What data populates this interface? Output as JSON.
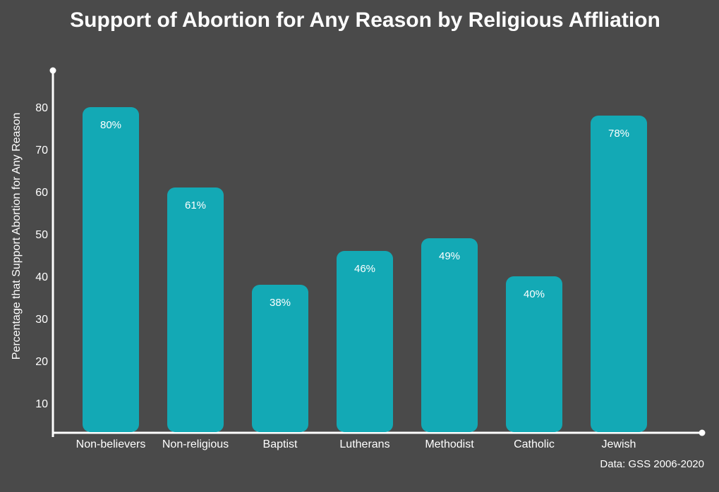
{
  "chart_data": {
    "type": "bar",
    "title": "Support of Abortion for Any Reason by Religious Affliation",
    "ylabel": "Percentage that Support Abortion for Any Reason",
    "xlabel": "",
    "categories": [
      "Non-believers",
      "Non-religious",
      "Baptist",
      "Lutherans",
      "Methodist",
      "Catholic",
      "Jewish"
    ],
    "values": [
      80,
      61,
      38,
      46,
      49,
      40,
      78
    ],
    "data_labels": [
      "80%",
      "61%",
      "38%",
      "46%",
      "49%",
      "40%",
      "78%"
    ],
    "yticks": [
      10,
      20,
      30,
      40,
      50,
      60,
      70,
      80
    ],
    "ylim": [
      3,
      89
    ],
    "grid": false,
    "legend": "none",
    "source": "Data: GSS 2006-2020"
  },
  "colors": {
    "background": "#4a4a4a",
    "bar": "#13a9b5",
    "axis": "#ffffff",
    "text": "#ffffff"
  }
}
